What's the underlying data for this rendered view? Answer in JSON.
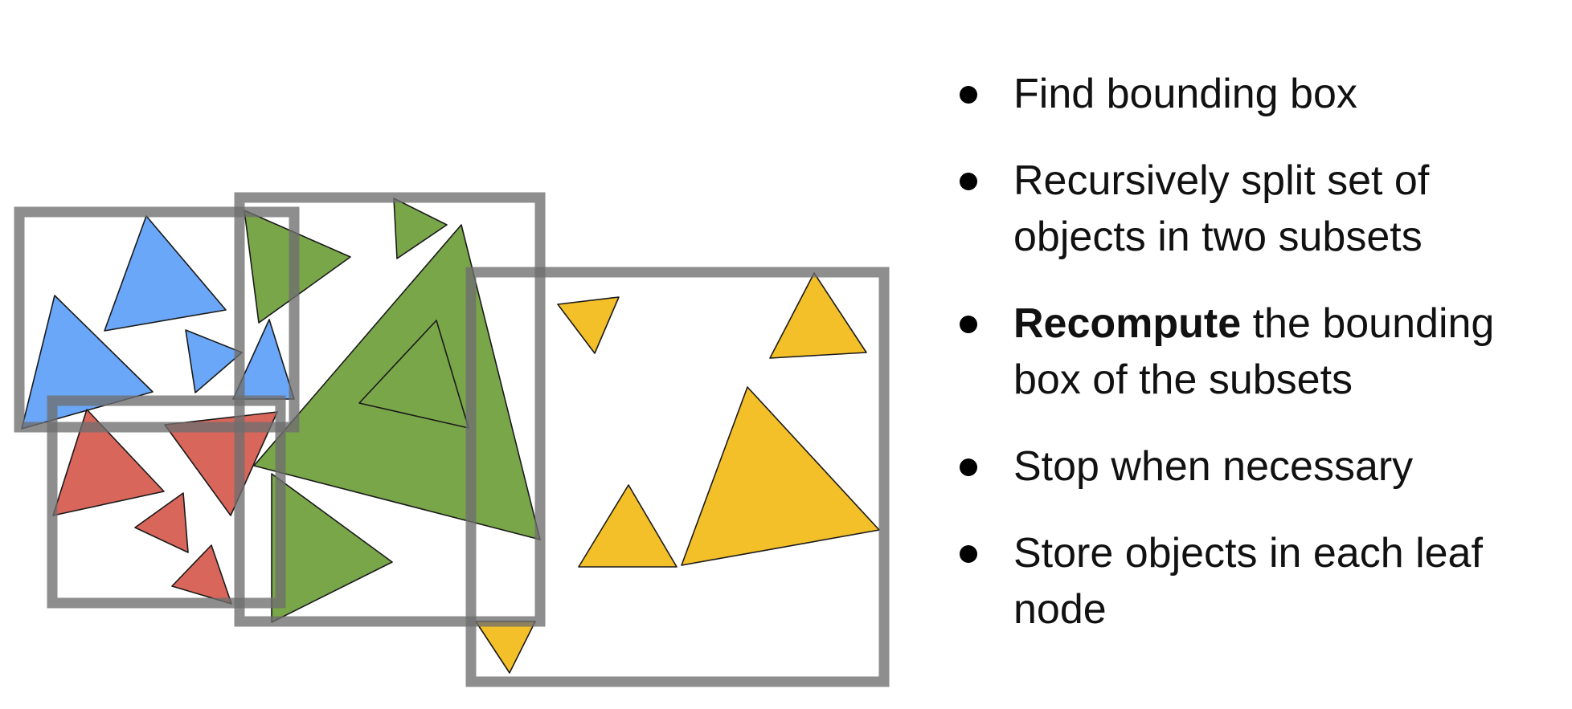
{
  "colors": {
    "blue": "#6aa7f8",
    "green": "#7aa64a",
    "red": "#d9665b",
    "yellow": "#f3c02a",
    "box": "#6e6e6e"
  },
  "bullets": [
    {
      "strong": "",
      "text": "Find bounding box"
    },
    {
      "strong": "",
      "text": "Recursively split set of objects in two subsets"
    },
    {
      "strong": "Recompute",
      "text": " the bounding box of the subsets"
    },
    {
      "strong": "",
      "text": "Stop when necessary"
    },
    {
      "strong": "",
      "text": "Store objects in each leaf node"
    }
  ]
}
